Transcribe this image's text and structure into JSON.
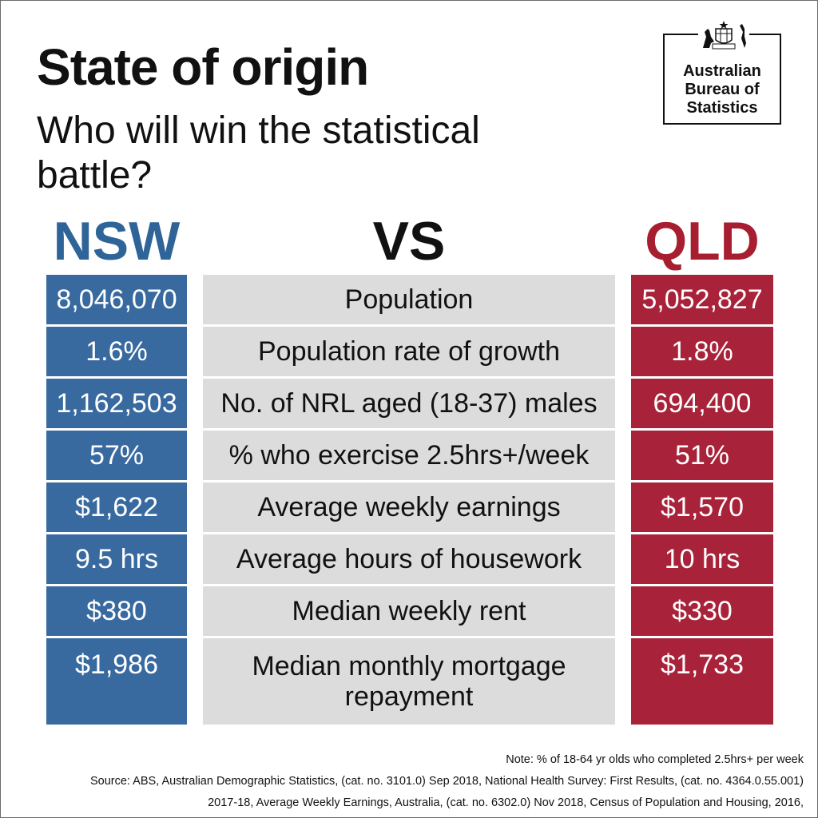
{
  "header": {
    "title": "State of origin",
    "subtitle": "Who will win the statistical battle?"
  },
  "logo": {
    "crest_label": "AUSTRALIA",
    "lines": [
      "Australian",
      "Bureau of",
      "Statistics"
    ]
  },
  "teams": {
    "left": "NSW",
    "middle": "VS",
    "right": "QLD"
  },
  "colors": {
    "nsw": "#386aa0",
    "qld": "#a8233a",
    "label_bg": "#dcdcdc"
  },
  "rows": [
    {
      "label": "Population",
      "nsw": "8,046,070",
      "qld": "5,052,827"
    },
    {
      "label": "Population rate of growth",
      "nsw": "1.6%",
      "qld": "1.8%"
    },
    {
      "label": "No. of NRL aged (18-37) males",
      "nsw": "1,162,503",
      "qld": "694,400"
    },
    {
      "label": "% who exercise 2.5hrs+/week",
      "nsw": "57%",
      "qld": "51%"
    },
    {
      "label": "Average weekly earnings",
      "nsw": "$1,622",
      "qld": "$1,570"
    },
    {
      "label": "Average hours of housework",
      "nsw": "9.5 hrs",
      "qld": "10 hrs"
    },
    {
      "label": "Median weekly rent",
      "nsw": "$380",
      "qld": "$330"
    },
    {
      "label": "Median monthly mortgage repayment",
      "nsw": "$1,986",
      "qld": "$1,733"
    }
  ],
  "footer": {
    "note": "Note: % of 18-64 yr olds who completed 2.5hrs+ per week",
    "source_line1": "Source: ABS, Australian Demographic Statistics, (cat. no. 3101.0) Sep 2018, National Health Survey: First Results, (cat. no. 4364.0.55.001)",
    "source_line2": "2017-18, Average Weekly Earnings, Australia, (cat. no. 6302.0) Nov 2018, Census of Population and Housing, 2016,"
  }
}
